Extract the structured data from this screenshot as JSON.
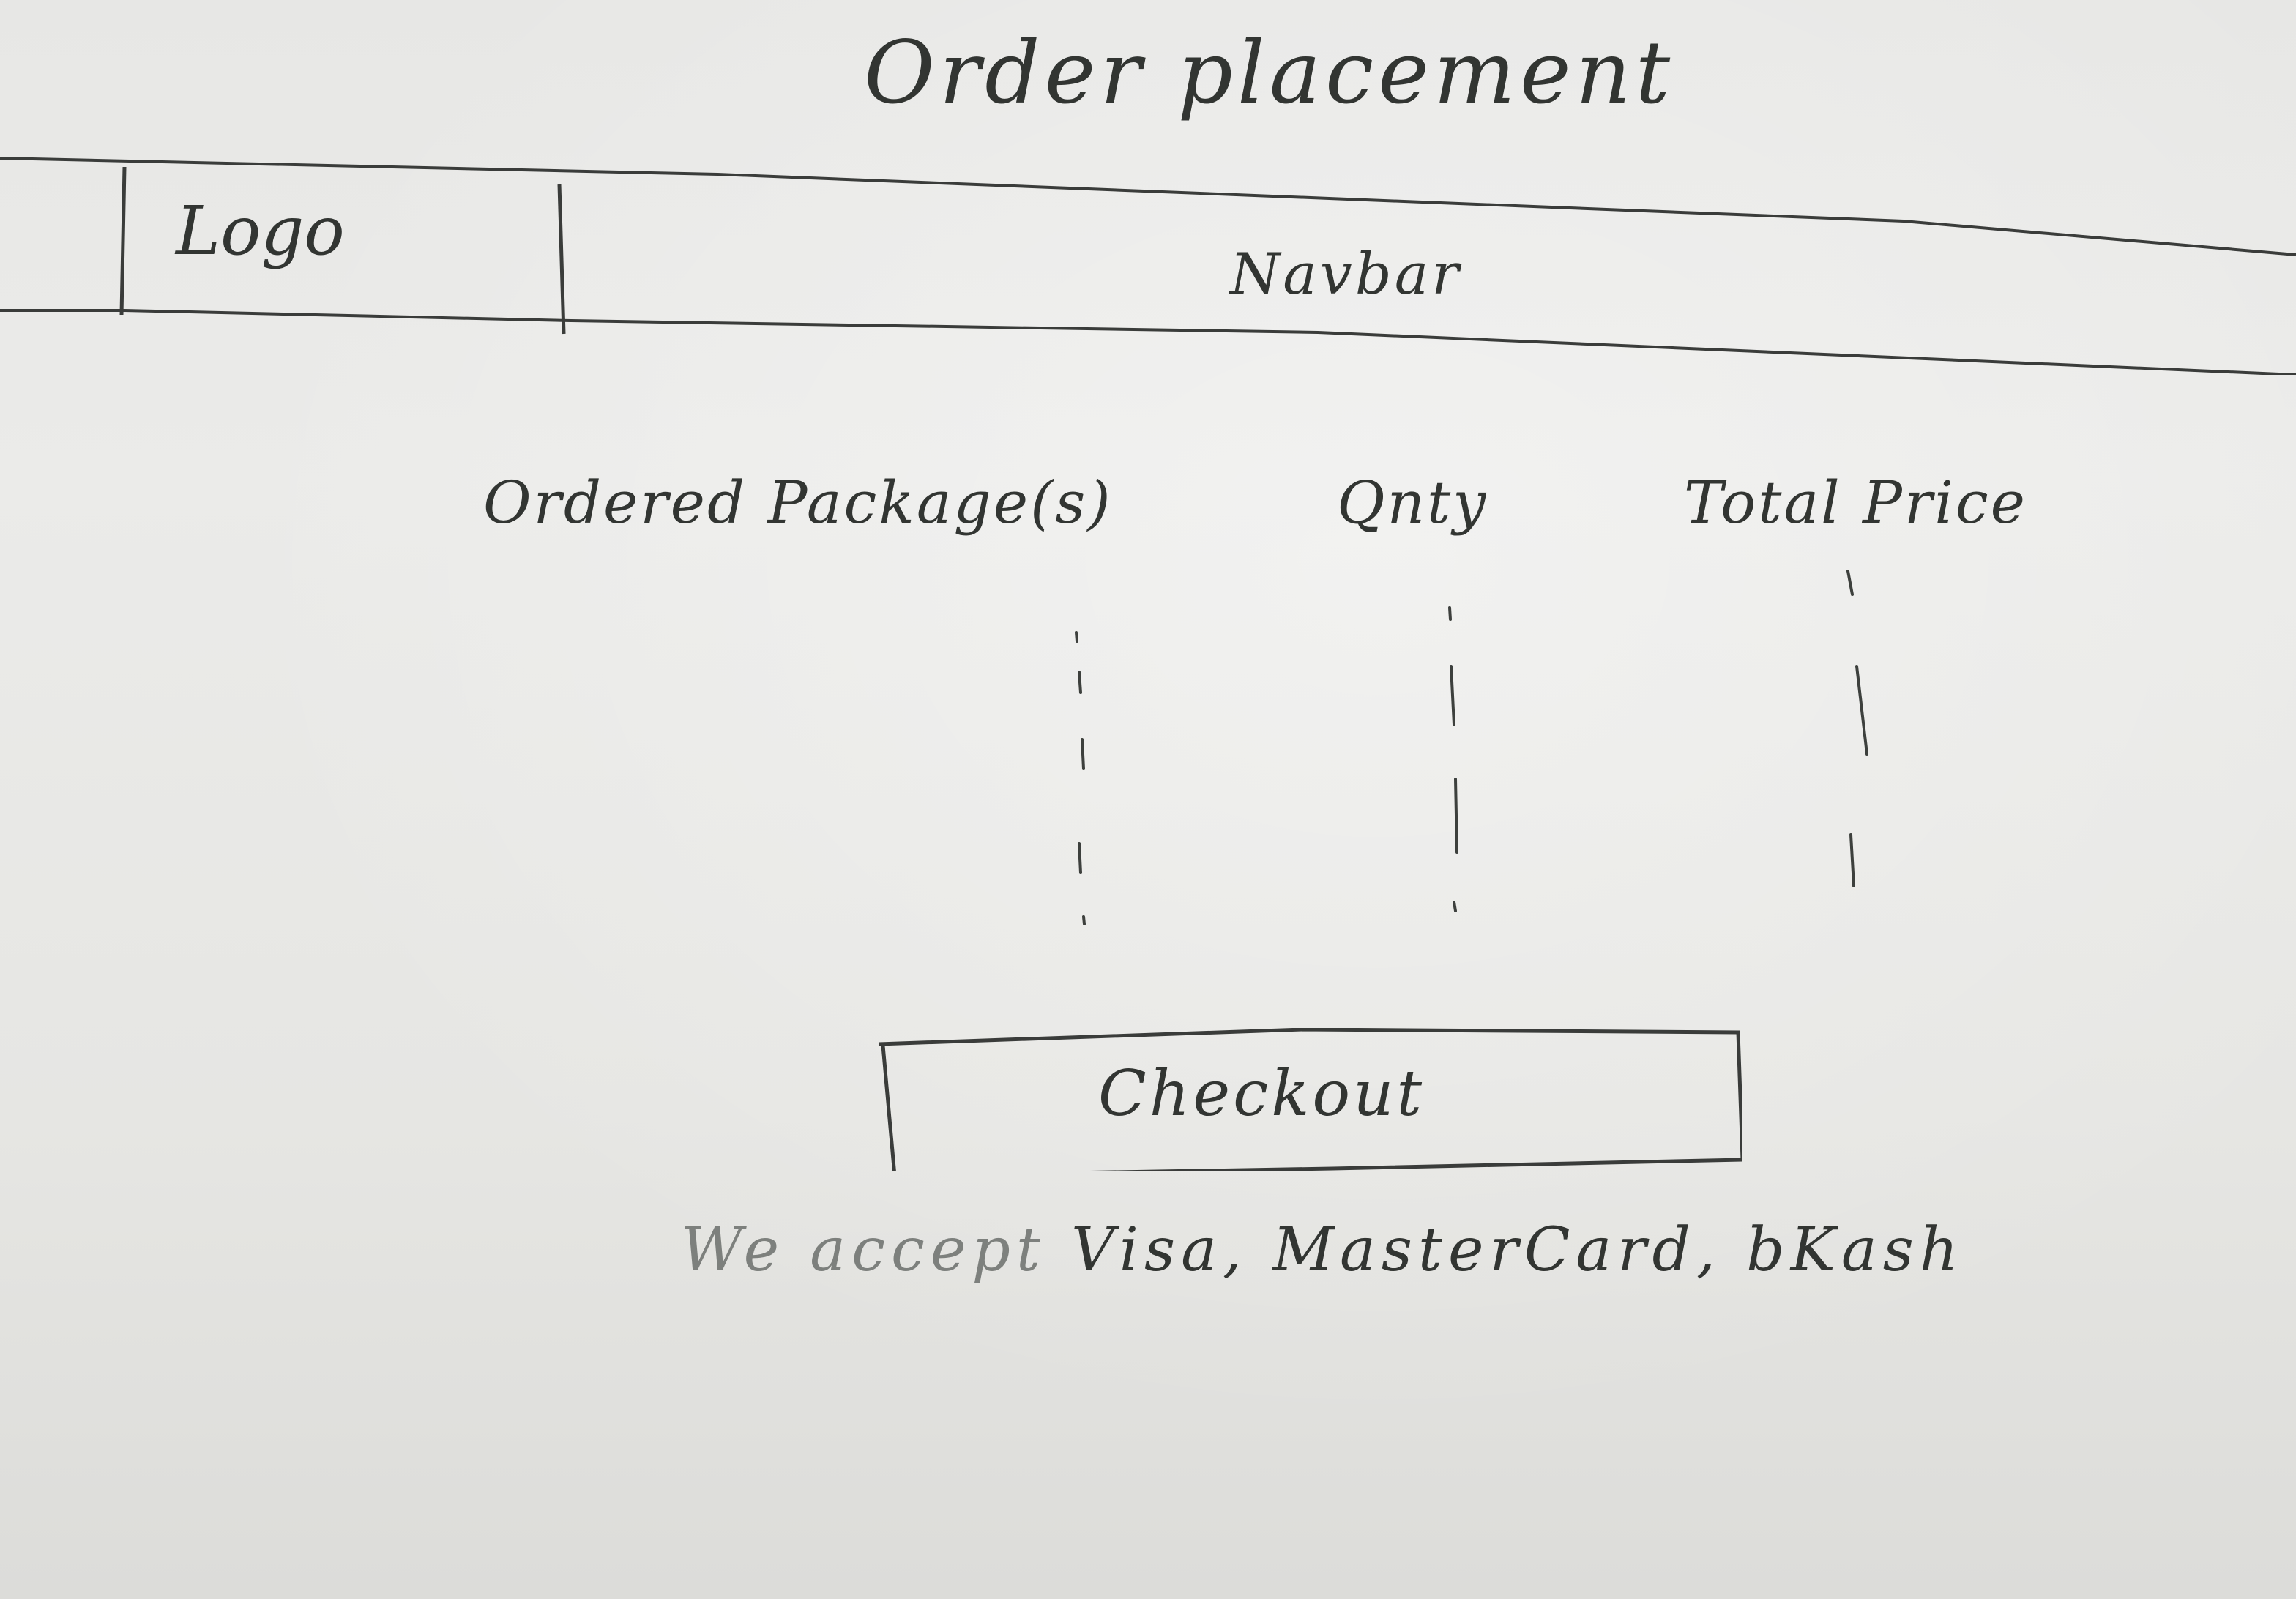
{
  "page": {
    "title": "Order placement"
  },
  "header": {
    "logo_text": "Logo",
    "navbar_text": "Navbar"
  },
  "order_table": {
    "columns": [
      "Ordered Package(s)",
      "Qnty",
      "Total Price"
    ]
  },
  "checkout": {
    "label": "Checkout"
  },
  "payment_note": {
    "prefix": "We accept",
    "methods": "Visa, MasterCard, bKash"
  }
}
